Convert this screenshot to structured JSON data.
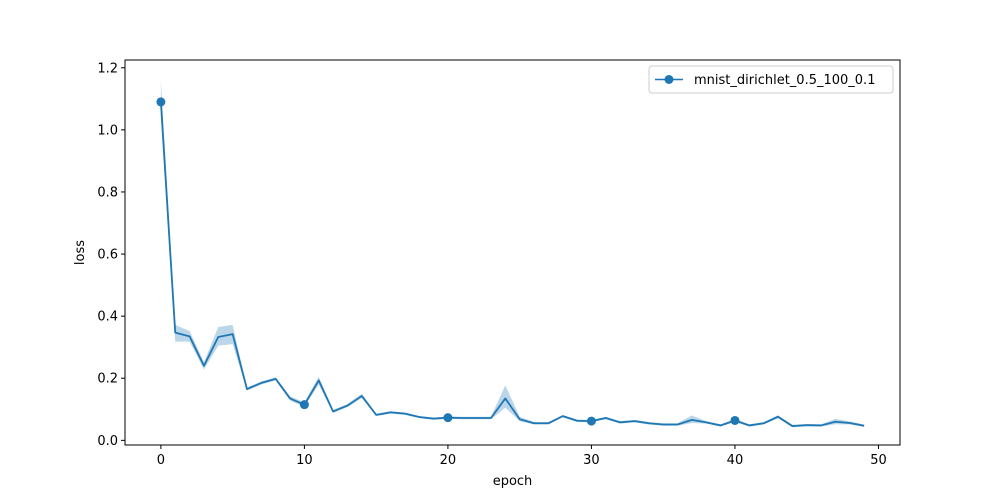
{
  "chart_data": {
    "type": "line",
    "title": "",
    "xlabel": "epoch",
    "ylabel": "loss",
    "xlim": [
      -2.5,
      51.5
    ],
    "ylim": [
      -0.015,
      1.225
    ],
    "xticks": [
      0,
      10,
      20,
      30,
      40,
      50
    ],
    "yticks": [
      0.0,
      0.2,
      0.4,
      0.6,
      0.8,
      1.0,
      1.2
    ],
    "xtick_labels": [
      "0",
      "10",
      "20",
      "30",
      "40",
      "50"
    ],
    "ytick_labels": [
      "0.0",
      "0.2",
      "0.4",
      "0.6",
      "0.8",
      "1.0",
      "1.2"
    ],
    "grid": false,
    "legend_position": "top-right",
    "series": [
      {
        "name": "mnist_dirichlet_0.5_100_0.1",
        "color": "#1f77b4",
        "band_color": "#1f77b4",
        "marker": "circle",
        "marker_every": 10,
        "x": [
          0,
          1,
          2,
          3,
          4,
          5,
          6,
          7,
          8,
          9,
          10,
          11,
          12,
          13,
          14,
          15,
          16,
          17,
          18,
          19,
          20,
          21,
          22,
          23,
          24,
          25,
          26,
          27,
          28,
          29,
          30,
          31,
          32,
          33,
          34,
          35,
          36,
          37,
          38,
          39,
          40,
          41,
          42,
          43,
          44,
          45,
          46,
          47,
          48,
          49
        ],
        "values": [
          1.09,
          0.347,
          0.335,
          0.24,
          0.333,
          0.342,
          0.165,
          0.185,
          0.198,
          0.135,
          0.115,
          0.193,
          0.093,
          0.112,
          0.143,
          0.082,
          0.09,
          0.086,
          0.075,
          0.07,
          0.073,
          0.072,
          0.072,
          0.072,
          0.135,
          0.068,
          0.055,
          0.055,
          0.078,
          0.063,
          0.062,
          0.072,
          0.058,
          0.062,
          0.055,
          0.051,
          0.051,
          0.066,
          0.058,
          0.048,
          0.064,
          0.048,
          0.055,
          0.076,
          0.046,
          0.049,
          0.048,
          0.06,
          0.056,
          0.047
        ],
        "lower": [
          1.04,
          0.318,
          0.318,
          0.228,
          0.305,
          0.31,
          0.16,
          0.18,
          0.193,
          0.128,
          0.108,
          0.18,
          0.088,
          0.107,
          0.136,
          0.078,
          0.086,
          0.082,
          0.072,
          0.066,
          0.069,
          0.068,
          0.068,
          0.068,
          0.105,
          0.062,
          0.051,
          0.051,
          0.074,
          0.059,
          0.058,
          0.068,
          0.054,
          0.058,
          0.051,
          0.047,
          0.047,
          0.056,
          0.054,
          0.044,
          0.059,
          0.044,
          0.051,
          0.071,
          0.042,
          0.045,
          0.044,
          0.052,
          0.051,
          0.043
        ],
        "upper": [
          1.16,
          0.372,
          0.352,
          0.252,
          0.365,
          0.372,
          0.17,
          0.19,
          0.203,
          0.142,
          0.122,
          0.205,
          0.098,
          0.117,
          0.15,
          0.086,
          0.094,
          0.09,
          0.078,
          0.074,
          0.077,
          0.076,
          0.076,
          0.076,
          0.177,
          0.076,
          0.059,
          0.059,
          0.082,
          0.067,
          0.066,
          0.076,
          0.062,
          0.066,
          0.059,
          0.055,
          0.055,
          0.08,
          0.062,
          0.052,
          0.069,
          0.052,
          0.059,
          0.081,
          0.05,
          0.053,
          0.052,
          0.069,
          0.061,
          0.051
        ]
      }
    ]
  }
}
